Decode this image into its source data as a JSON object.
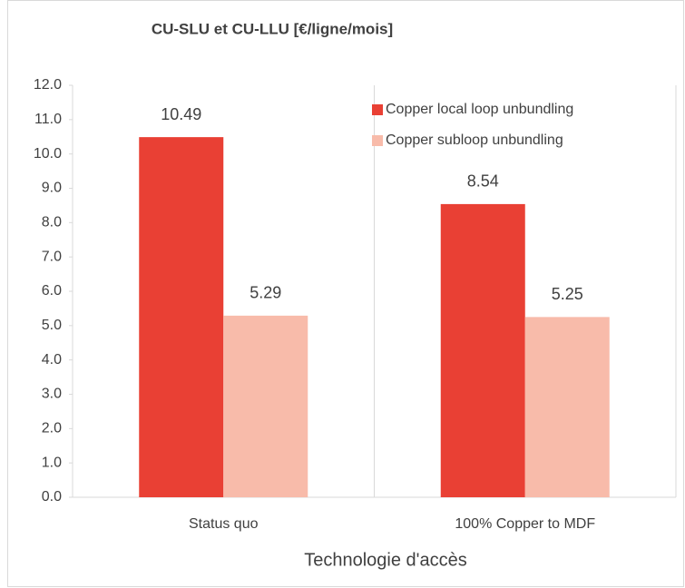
{
  "chart_data": {
    "type": "bar",
    "title": "CU-SLU et CU-LLU [€/ligne/mois]",
    "x_label": "Technologie d'accès",
    "categories": [
      "Status quo",
      "100% Copper to MDF"
    ],
    "series": [
      {
        "name": "Copper local loop unbundling",
        "color": "#e94034",
        "values": [
          10.49,
          8.54
        ]
      },
      {
        "name": "Copper subloop unbundling",
        "color": "#f8bbaa",
        "values": [
          5.29,
          5.25
        ]
      }
    ],
    "ylim": [
      0,
      12
    ],
    "yticks": [
      {
        "value": 0,
        "label": "0.0"
      },
      {
        "value": 1,
        "label": "1.0"
      },
      {
        "value": 2,
        "label": "2.0"
      },
      {
        "value": 3,
        "label": "3.0"
      },
      {
        "value": 4,
        "label": "4.0"
      },
      {
        "value": 5,
        "label": "5.0"
      },
      {
        "value": 6,
        "label": "6.0"
      },
      {
        "value": 7,
        "label": "7.0"
      },
      {
        "value": 8,
        "label": "8.0"
      },
      {
        "value": 9,
        "label": "9.0"
      },
      {
        "value": 10,
        "label": "10.0"
      },
      {
        "value": 11,
        "label": "11.0"
      },
      {
        "value": 12,
        "label": "12.0"
      }
    ],
    "legend": "top-right"
  }
}
